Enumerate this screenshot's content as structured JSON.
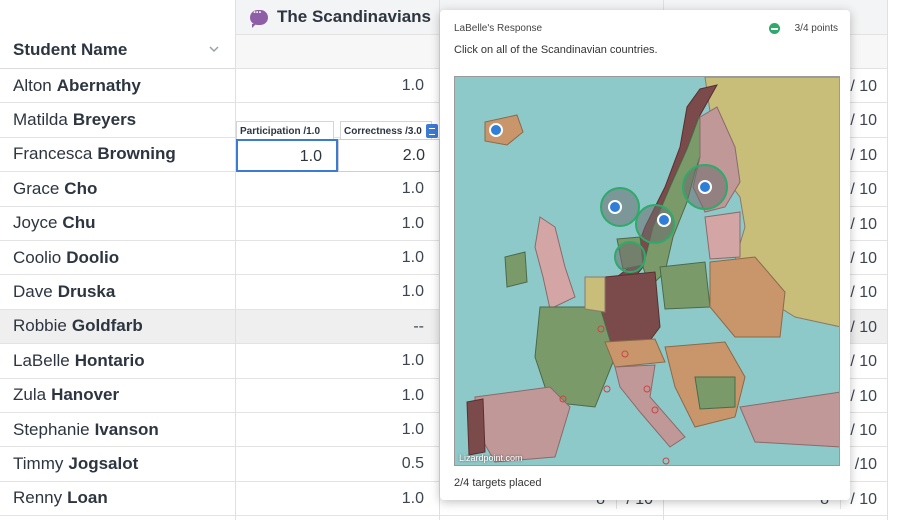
{
  "names_column": {
    "header": "Student Name",
    "students": [
      {
        "first": "Alton",
        "last": "Abernathy"
      },
      {
        "first": "Matilda",
        "last": "Breyers"
      },
      {
        "first": "Francesca",
        "last": "Browning"
      },
      {
        "first": "Grace",
        "last": "Cho"
      },
      {
        "first": "Joyce",
        "last": "Chu"
      },
      {
        "first": "Coolio",
        "last": "Doolio"
      },
      {
        "first": "Dave",
        "last": "Druska"
      },
      {
        "first": "Robbie",
        "last": "Goldfarb"
      },
      {
        "first": "LaBelle",
        "last": "Hontario"
      },
      {
        "first": "Zula",
        "last": "Hanover"
      },
      {
        "first": "Stephanie",
        "last": "Ivanson"
      },
      {
        "first": "Timmy",
        "last": "Jogsalot"
      },
      {
        "first": "Renny",
        "last": "Loan"
      }
    ]
  },
  "assignment": {
    "title": "The Scandinavians",
    "scores": [
      "1.0",
      "",
      "",
      "1.0",
      "1.0",
      "1.0",
      "1.0",
      "--",
      "1.0",
      "1.0",
      "1.0",
      "0.5",
      "1.0"
    ]
  },
  "editor": {
    "participation_label": "Participation /1.0",
    "correctness_label": "Correctness /3.0",
    "participation_value": "1.0",
    "correctness_value": "2.0"
  },
  "right_columns": {
    "col1_bottom_value": "8",
    "col1_bottom_den": "/ 10",
    "col2_dens": [
      "/ 10",
      "/ 10",
      "/ 10",
      "/ 10",
      "/ 10",
      "/ 10",
      "/ 10",
      "/ 10",
      "/ 10",
      "/ 10",
      "/ 10",
      "/10",
      "/ 10"
    ],
    "col2_bottom_value": "8"
  },
  "popover": {
    "title": "LaBelle's Response",
    "points": "3/4 points",
    "question": "Click on all of the Scandinavian countries.",
    "map_credit": "Lizardpoint.com",
    "footer": "2/4 targets placed"
  },
  "colors": {
    "accent": "#3b7bd4",
    "discussion_icon": "#8e5fa6",
    "success": "#2eaa6a"
  }
}
